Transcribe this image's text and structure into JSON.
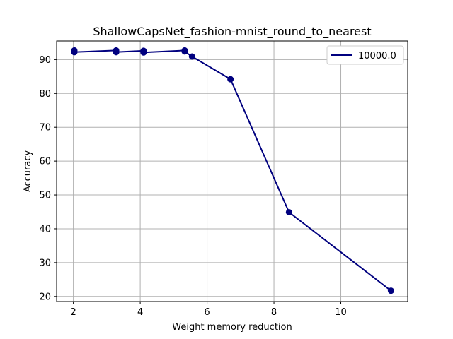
{
  "chart_data": {
    "type": "line",
    "title": "ShallowCapsNet_fashion-mnist_round_to_nearest",
    "xlabel": "Weight memory reduction",
    "ylabel": "Accuracy",
    "xlim": [
      1.5,
      12.0
    ],
    "ylim": [
      18.5,
      95.5
    ],
    "xticks": [
      2,
      4,
      6,
      8,
      10
    ],
    "yticks": [
      20,
      30,
      40,
      50,
      60,
      70,
      80,
      90
    ],
    "grid": true,
    "legend_position": "top-right",
    "series": [
      {
        "name": "10000.0",
        "color": "#00007f",
        "points": [
          {
            "x": 2.03,
            "y": 92.7
          },
          {
            "x": 2.03,
            "y": 92.2
          },
          {
            "x": 3.28,
            "y": 92.7
          },
          {
            "x": 3.28,
            "y": 92.2
          },
          {
            "x": 4.1,
            "y": 92.6
          },
          {
            "x": 4.1,
            "y": 92.1
          },
          {
            "x": 5.33,
            "y": 92.7
          },
          {
            "x": 5.33,
            "y": 92.4
          },
          {
            "x": 5.55,
            "y": 90.9
          },
          {
            "x": 6.7,
            "y": 84.2
          },
          {
            "x": 8.45,
            "y": 44.9
          },
          {
            "x": 11.5,
            "y": 21.7
          }
        ]
      }
    ]
  }
}
